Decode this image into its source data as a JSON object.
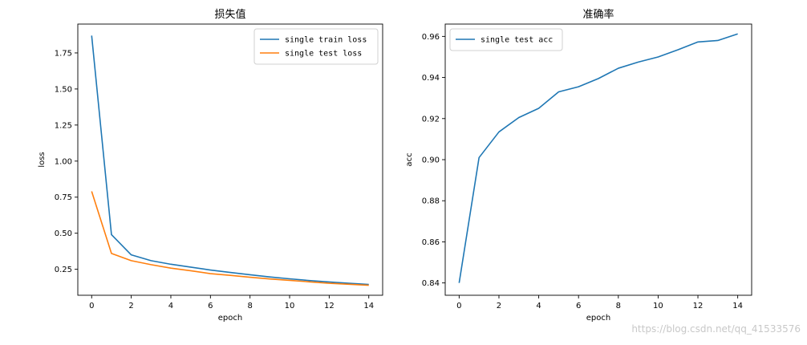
{
  "chart_data": [
    {
      "type": "line",
      "title": "损失值",
      "xlabel": "epoch",
      "ylabel": "loss",
      "xlim": [
        -0.7,
        14.7
      ],
      "ylim": [
        0.07,
        1.95
      ],
      "xticks": [
        0,
        2,
        4,
        6,
        8,
        10,
        12,
        14
      ],
      "xtick_labels": [
        "0",
        "2",
        "4",
        "6",
        "8",
        "10",
        "12",
        "14"
      ],
      "yticks": [
        0.25,
        0.5,
        0.75,
        1.0,
        1.25,
        1.5,
        1.75
      ],
      "ytick_labels": [
        "0.25",
        "0.50",
        "0.75",
        "1.00",
        "1.25",
        "1.50",
        "1.75"
      ],
      "legend_position": "top-right",
      "grid": false,
      "x": [
        0,
        1,
        2,
        3,
        4,
        5,
        6,
        7,
        8,
        9,
        10,
        11,
        12,
        13,
        14
      ],
      "series": [
        {
          "name": "single train loss",
          "color": "#1f77b4",
          "values": [
            1.87,
            0.49,
            0.35,
            0.31,
            0.285,
            0.265,
            0.245,
            0.228,
            0.212,
            0.197,
            0.184,
            0.172,
            0.162,
            0.153,
            0.145
          ]
        },
        {
          "name": "single test loss",
          "color": "#ff7f0e",
          "values": [
            0.79,
            0.36,
            0.31,
            0.282,
            0.258,
            0.24,
            0.22,
            0.208,
            0.195,
            0.183,
            0.173,
            0.163,
            0.153,
            0.146,
            0.139
          ]
        }
      ]
    },
    {
      "type": "line",
      "title": "准确率",
      "xlabel": "epoch",
      "ylabel": "acc",
      "xlim": [
        -0.7,
        14.7
      ],
      "ylim": [
        0.834,
        0.966
      ],
      "xticks": [
        0,
        2,
        4,
        6,
        8,
        10,
        12,
        14
      ],
      "xtick_labels": [
        "0",
        "2",
        "4",
        "6",
        "8",
        "10",
        "12",
        "14"
      ],
      "yticks": [
        0.84,
        0.86,
        0.88,
        0.9,
        0.92,
        0.94,
        0.96
      ],
      "ytick_labels": [
        "0.84",
        "0.86",
        "0.88",
        "0.90",
        "0.92",
        "0.94",
        "0.96"
      ],
      "legend_position": "top-left",
      "grid": false,
      "x": [
        0,
        1,
        2,
        3,
        4,
        5,
        6,
        7,
        8,
        9,
        10,
        11,
        12,
        13,
        14
      ],
      "series": [
        {
          "name": "single test acc",
          "color": "#1f77b4",
          "values": [
            0.84,
            0.901,
            0.9135,
            0.9205,
            0.925,
            0.933,
            0.9355,
            0.9395,
            0.9445,
            0.9475,
            0.95,
            0.9535,
            0.9573,
            0.958,
            0.9612
          ]
        }
      ]
    }
  ],
  "watermark": "https://blog.csdn.net/qq_41533576"
}
